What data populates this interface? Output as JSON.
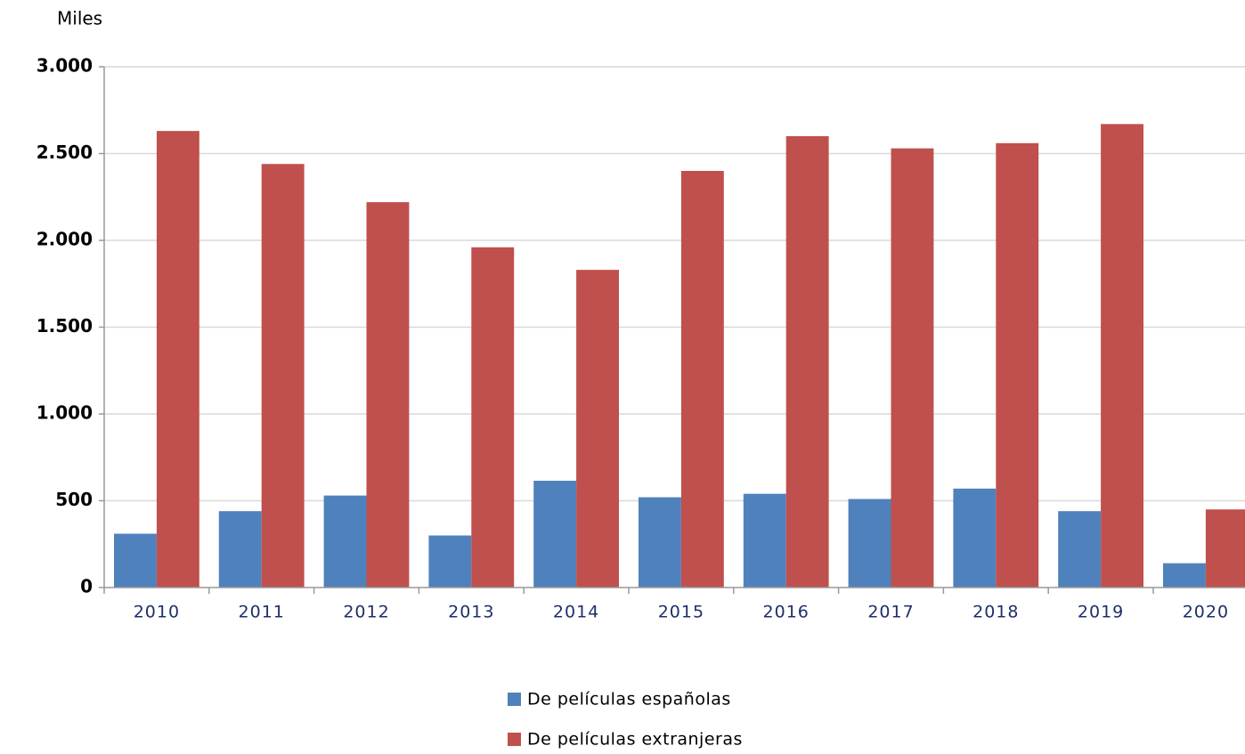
{
  "chart_data": {
    "type": "bar",
    "y_label": "Miles",
    "categories": [
      "2010",
      "2011",
      "2012",
      "2013",
      "2014",
      "2015",
      "2016",
      "2017",
      "2018",
      "2019",
      "2020"
    ],
    "series": [
      {
        "name": "De películas españolas",
        "color": "#4f81bd",
        "values": [
          310,
          440,
          530,
          300,
          615,
          520,
          540,
          510,
          570,
          440,
          140
        ]
      },
      {
        "name": "De películas extranjeras",
        "color": "#c0504d",
        "values": [
          2630,
          2440,
          2220,
          1960,
          1830,
          2400,
          2600,
          2530,
          2560,
          2670,
          450
        ]
      }
    ],
    "ylim": [
      0,
      3000
    ],
    "yticks": [
      0,
      500,
      {
        "value": 1000,
        "label": "1.000"
      },
      {
        "value": 1500,
        "label": "1.500"
      },
      {
        "value": 2000,
        "label": "2.000"
      },
      {
        "value": 2500,
        "label": "2.500"
      },
      {
        "value": 3000,
        "label": "3.000"
      }
    ],
    "grid": true
  }
}
